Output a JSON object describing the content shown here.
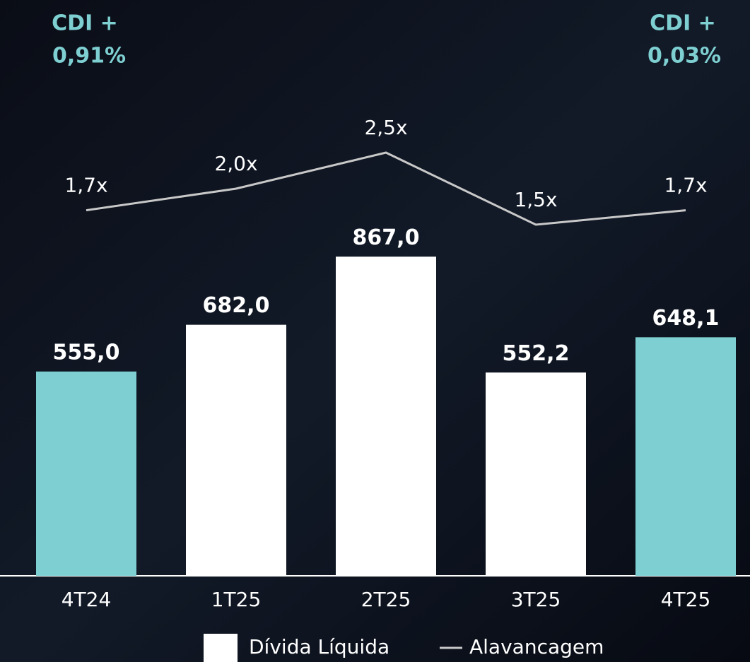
{
  "chart_data": {
    "type": "bar",
    "categories": [
      "4T24",
      "1T25",
      "2T25",
      "3T25",
      "4T25"
    ],
    "series": [
      {
        "name": "Dívida Líquida",
        "type": "bar",
        "color": "#ffffff",
        "colors": [
          "#7ecfd1",
          "#ffffff",
          "#ffffff",
          "#ffffff",
          "#7ecfd1"
        ],
        "values": [
          555.0,
          682.0,
          867.0,
          552.2,
          648.1
        ],
        "value_labels": [
          "555,0",
          "682,0",
          "867,0",
          "552,2",
          "648,1"
        ]
      },
      {
        "name": "Alavancagem",
        "type": "line",
        "axis": "y2",
        "color": "#c8c8c8",
        "values": [
          1.7,
          2.0,
          2.5,
          1.5,
          1.7
        ],
        "value_labels": [
          "1,7x",
          "2,0x",
          "2,5x",
          "1,5x",
          "1,7x"
        ]
      }
    ],
    "ylim": [
      0,
      1000
    ],
    "y2lim": [
      0,
      3
    ],
    "annotations": [
      "CDI +",
      "0,91%",
      "CDI +",
      "0,03%"
    ]
  }
}
